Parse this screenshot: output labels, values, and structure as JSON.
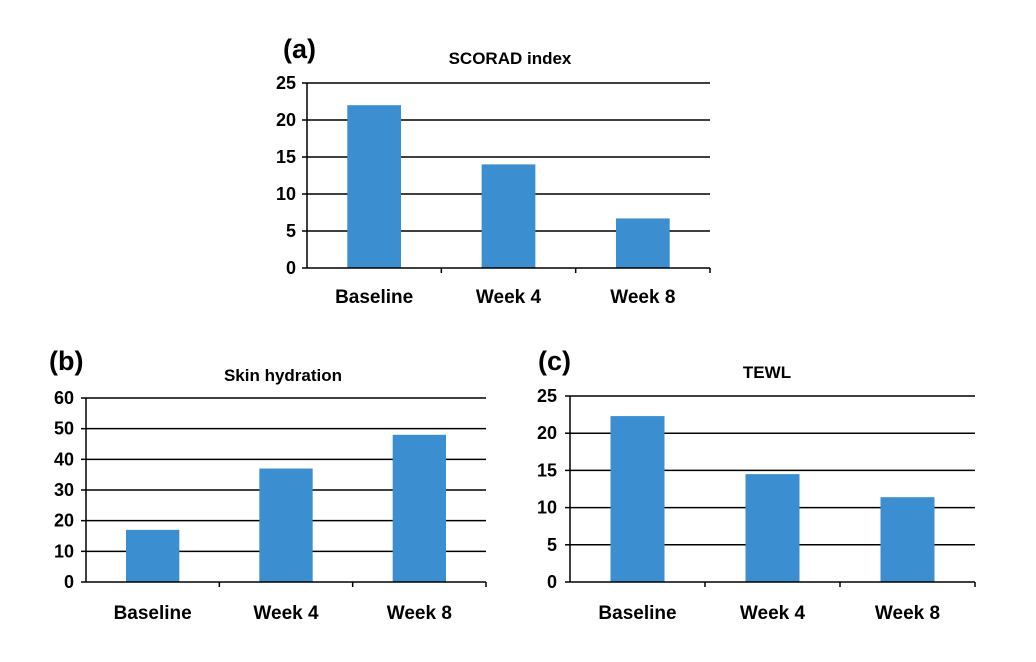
{
  "colors": {
    "bar": "#3b8fd0",
    "grid": "#000000",
    "text": "#000000"
  },
  "chart_data": [
    {
      "panel": "(a)",
      "type": "bar",
      "title": "SCORAD index",
      "categories": [
        "Baseline",
        "Week 4",
        "Week 8"
      ],
      "values": [
        22,
        14,
        6.7
      ],
      "ylim": [
        0,
        25
      ],
      "yticks": [
        0,
        5,
        10,
        15,
        20,
        25
      ],
      "xlabel": "",
      "ylabel": "",
      "grid": true,
      "legend": "none"
    },
    {
      "panel": "(b)",
      "type": "bar",
      "title": "Skin hydration",
      "categories": [
        "Baseline",
        "Week 4",
        "Week 8"
      ],
      "values": [
        17,
        37,
        48
      ],
      "ylim": [
        0,
        60
      ],
      "yticks": [
        0,
        10,
        20,
        30,
        40,
        50,
        60
      ],
      "xlabel": "",
      "ylabel": "",
      "grid": true,
      "legend": "none"
    },
    {
      "panel": "(c)",
      "type": "bar",
      "title": "TEWL",
      "categories": [
        "Baseline",
        "Week 4",
        "Week 8"
      ],
      "values": [
        22.3,
        14.5,
        11.4
      ],
      "ylim": [
        0,
        25
      ],
      "yticks": [
        0,
        5,
        10,
        15,
        20,
        25
      ],
      "xlabel": "",
      "ylabel": "",
      "grid": true,
      "legend": "none"
    }
  ]
}
